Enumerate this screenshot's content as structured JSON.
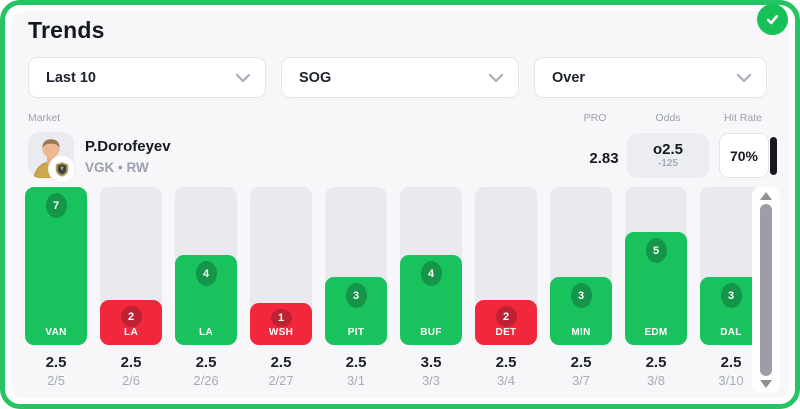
{
  "card": {
    "title": "Trends",
    "accent_green": "#26C364",
    "over_color": "#18C25C",
    "under_color": "#F1283C",
    "track_color": "#E9E9F0"
  },
  "icons": {
    "check": "check-icon",
    "chevron_down": "chevron-down-icon",
    "scroll_up": "scroll-up-arrow-icon",
    "scroll_down": "scroll-down-arrow-icon"
  },
  "filters": [
    {
      "label": "Last 10"
    },
    {
      "label": "SOG"
    },
    {
      "label": "Over"
    }
  ],
  "table_header": {
    "market": "Market",
    "pro": "PRO",
    "odds": "Odds",
    "hit_rate": "Hit Rate"
  },
  "player": {
    "name": "P.Dorofeyev",
    "team_position": "VGK • RW",
    "pro": "2.83",
    "odds_main": "o2.5",
    "odds_sub": "-125",
    "hit_rate": "70%"
  },
  "chart_data": {
    "type": "bar",
    "title": "Last 10 games SOG vs line",
    "ylim": [
      0,
      7
    ],
    "max_value": 7,
    "categories": [
      "VAN",
      "LA",
      "LA",
      "WSH",
      "PIT",
      "BUF",
      "DET",
      "MIN",
      "EDM",
      "DAL"
    ],
    "values": [
      7,
      2,
      4,
      1,
      3,
      4,
      2,
      3,
      5,
      3
    ],
    "games": [
      {
        "team": "VAN",
        "value": 7,
        "result": "over",
        "line": "2.5",
        "date": "2/5"
      },
      {
        "team": "LA",
        "value": 2,
        "result": "under",
        "line": "2.5",
        "date": "2/6"
      },
      {
        "team": "LA",
        "value": 4,
        "result": "over",
        "line": "2.5",
        "date": "2/26"
      },
      {
        "team": "WSH",
        "value": 1,
        "result": "under",
        "line": "2.5",
        "date": "2/27"
      },
      {
        "team": "PIT",
        "value": 3,
        "result": "over",
        "line": "2.5",
        "date": "3/1"
      },
      {
        "team": "BUF",
        "value": 4,
        "result": "over",
        "line": "3.5",
        "date": "3/3"
      },
      {
        "team": "DET",
        "value": 2,
        "result": "under",
        "line": "2.5",
        "date": "3/4"
      },
      {
        "team": "MIN",
        "value": 3,
        "result": "over",
        "line": "2.5",
        "date": "3/7"
      },
      {
        "team": "EDM",
        "value": 5,
        "result": "over",
        "line": "2.5",
        "date": "3/8"
      },
      {
        "team": "DAL",
        "value": 3,
        "result": "over",
        "line": "2.5",
        "date": "3/10"
      }
    ],
    "legend": null,
    "grid": false
  }
}
